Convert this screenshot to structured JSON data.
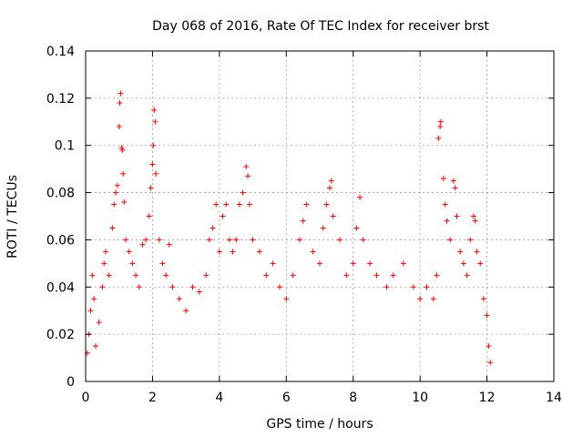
{
  "chart_data": {
    "type": "scatter",
    "title": "Day 068 of 2016, Rate Of TEC Index for receiver brst",
    "xlabel": "GPS time / hours",
    "ylabel": "ROTI / TECUs",
    "xlim": [
      0,
      14
    ],
    "ylim": [
      0,
      0.14
    ],
    "x_ticks": [
      "0",
      "2",
      "4",
      "6",
      "8",
      "10",
      "12",
      "14"
    ],
    "y_ticks": [
      "0",
      "0.02",
      "0.04",
      "0.06",
      "0.08",
      "0.1",
      "0.12",
      "0.14"
    ],
    "grid": true,
    "marker": "+",
    "color": "#ff0000",
    "series": [
      {
        "name": "ROTI",
        "points": [
          [
            0.05,
            0.012
          ],
          [
            0.1,
            0.02
          ],
          [
            0.15,
            0.03
          ],
          [
            0.2,
            0.045
          ],
          [
            0.25,
            0.035
          ],
          [
            0.3,
            0.015
          ],
          [
            0.4,
            0.025
          ],
          [
            0.5,
            0.04
          ],
          [
            0.55,
            0.05
          ],
          [
            0.6,
            0.055
          ],
          [
            0.7,
            0.045
          ],
          [
            0.8,
            0.065
          ],
          [
            0.85,
            0.075
          ],
          [
            0.9,
            0.08
          ],
          [
            0.95,
            0.083
          ],
          [
            1.0,
            0.108
          ],
          [
            1.02,
            0.118
          ],
          [
            1.05,
            0.122
          ],
          [
            1.08,
            0.099
          ],
          [
            1.1,
            0.098
          ],
          [
            1.12,
            0.088
          ],
          [
            1.15,
            0.076
          ],
          [
            1.2,
            0.06
          ],
          [
            1.3,
            0.055
          ],
          [
            1.4,
            0.05
          ],
          [
            1.5,
            0.045
          ],
          [
            1.6,
            0.04
          ],
          [
            1.7,
            0.058
          ],
          [
            1.8,
            0.06
          ],
          [
            1.9,
            0.07
          ],
          [
            1.95,
            0.082
          ],
          [
            2.0,
            0.092
          ],
          [
            2.02,
            0.1
          ],
          [
            2.05,
            0.115
          ],
          [
            2.08,
            0.11
          ],
          [
            2.1,
            0.088
          ],
          [
            2.2,
            0.06
          ],
          [
            2.3,
            0.05
          ],
          [
            2.4,
            0.045
          ],
          [
            2.5,
            0.058
          ],
          [
            2.6,
            0.04
          ],
          [
            2.8,
            0.035
          ],
          [
            3.0,
            0.03
          ],
          [
            3.2,
            0.04
          ],
          [
            3.4,
            0.038
          ],
          [
            3.6,
            0.045
          ],
          [
            3.7,
            0.06
          ],
          [
            3.8,
            0.065
          ],
          [
            3.9,
            0.075
          ],
          [
            4.0,
            0.055
          ],
          [
            4.1,
            0.07
          ],
          [
            4.2,
            0.075
          ],
          [
            4.3,
            0.06
          ],
          [
            4.4,
            0.055
          ],
          [
            4.5,
            0.06
          ],
          [
            4.6,
            0.075
          ],
          [
            4.7,
            0.08
          ],
          [
            4.8,
            0.091
          ],
          [
            4.85,
            0.087
          ],
          [
            4.9,
            0.075
          ],
          [
            5.0,
            0.06
          ],
          [
            5.2,
            0.055
          ],
          [
            5.4,
            0.045
          ],
          [
            5.6,
            0.05
          ],
          [
            5.8,
            0.04
          ],
          [
            6.0,
            0.035
          ],
          [
            6.2,
            0.045
          ],
          [
            6.4,
            0.06
          ],
          [
            6.5,
            0.068
          ],
          [
            6.6,
            0.075
          ],
          [
            6.8,
            0.055
          ],
          [
            7.0,
            0.05
          ],
          [
            7.1,
            0.065
          ],
          [
            7.2,
            0.075
          ],
          [
            7.3,
            0.082
          ],
          [
            7.35,
            0.085
          ],
          [
            7.4,
            0.07
          ],
          [
            7.6,
            0.06
          ],
          [
            7.8,
            0.045
          ],
          [
            8.0,
            0.05
          ],
          [
            8.1,
            0.065
          ],
          [
            8.2,
            0.078
          ],
          [
            8.3,
            0.06
          ],
          [
            8.5,
            0.05
          ],
          [
            8.7,
            0.045
          ],
          [
            9.0,
            0.04
          ],
          [
            9.2,
            0.045
          ],
          [
            9.5,
            0.05
          ],
          [
            9.8,
            0.04
          ],
          [
            10.0,
            0.035
          ],
          [
            10.2,
            0.04
          ],
          [
            10.4,
            0.035
          ],
          [
            10.5,
            0.045
          ],
          [
            10.55,
            0.103
          ],
          [
            10.6,
            0.108
          ],
          [
            10.62,
            0.11
          ],
          [
            10.7,
            0.086
          ],
          [
            10.75,
            0.075
          ],
          [
            10.8,
            0.068
          ],
          [
            10.9,
            0.06
          ],
          [
            11.0,
            0.085
          ],
          [
            11.05,
            0.082
          ],
          [
            11.1,
            0.07
          ],
          [
            11.2,
            0.055
          ],
          [
            11.3,
            0.05
          ],
          [
            11.4,
            0.045
          ],
          [
            11.5,
            0.06
          ],
          [
            11.6,
            0.07
          ],
          [
            11.65,
            0.068
          ],
          [
            11.7,
            0.055
          ],
          [
            11.8,
            0.05
          ],
          [
            11.9,
            0.035
          ],
          [
            12.0,
            0.028
          ],
          [
            12.05,
            0.015
          ],
          [
            12.1,
            0.008
          ]
        ]
      }
    ]
  }
}
